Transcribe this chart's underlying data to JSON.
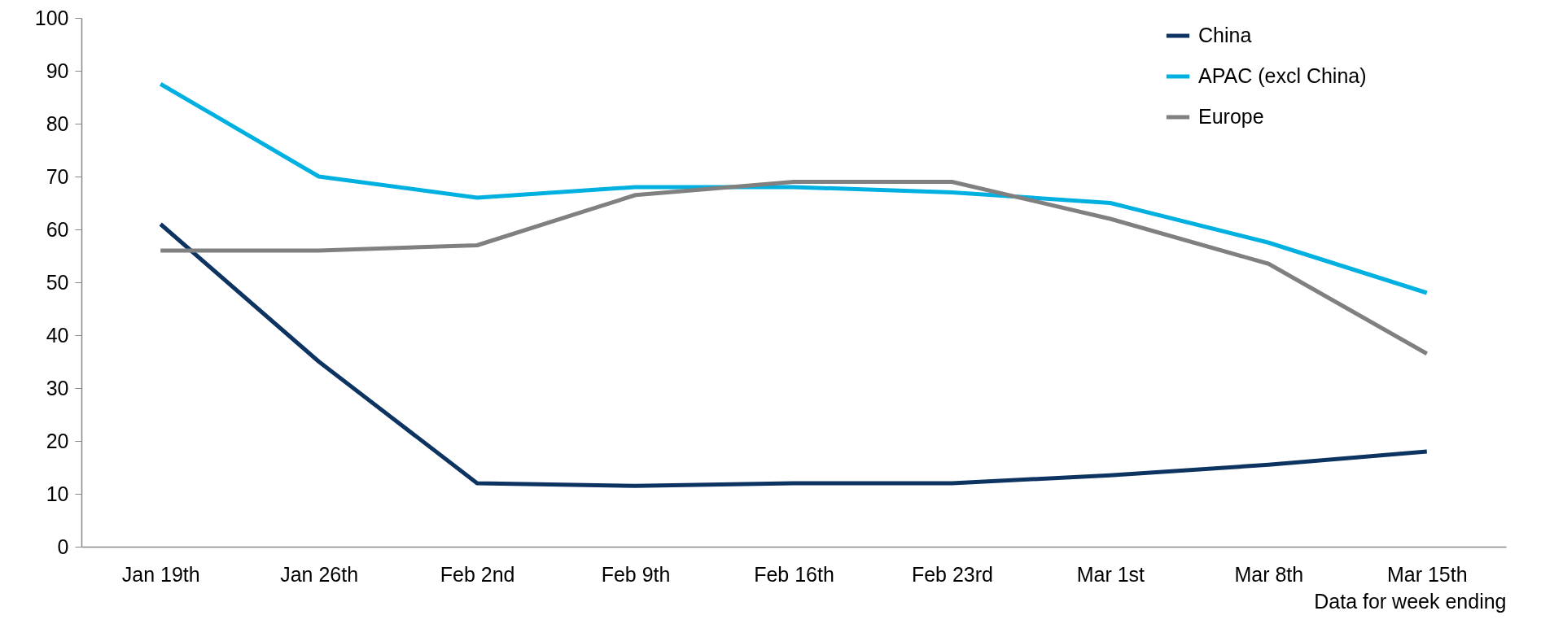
{
  "chart_data": {
    "type": "line",
    "xlabel": "Data for week ending",
    "categories": [
      "Jan 19th",
      "Jan 26th",
      "Feb 2nd",
      "Feb 9th",
      "Feb 16th",
      "Feb 23rd",
      "Mar 1st",
      "Mar 8th",
      "Mar 15th"
    ],
    "series": [
      {
        "name": "China",
        "color": "#0d3361",
        "values": [
          61,
          35,
          12,
          11.5,
          12,
          12,
          13.5,
          15.5,
          18
        ]
      },
      {
        "name": "APAC (excl China)",
        "color": "#00b0e0",
        "values": [
          87.5,
          70,
          66,
          68,
          68,
          67,
          65,
          57.5,
          48
        ]
      },
      {
        "name": "Europe",
        "color": "#808080",
        "values": [
          56,
          56,
          57,
          66.5,
          69,
          69,
          62,
          53.5,
          36.5
        ]
      }
    ],
    "ylim": [
      0,
      100
    ],
    "yticks": [
      0,
      10,
      20,
      30,
      40,
      50,
      60,
      70,
      80,
      90,
      100
    ],
    "grid": false,
    "legend": "top right",
    "marker": "none",
    "line_style": "solid"
  }
}
